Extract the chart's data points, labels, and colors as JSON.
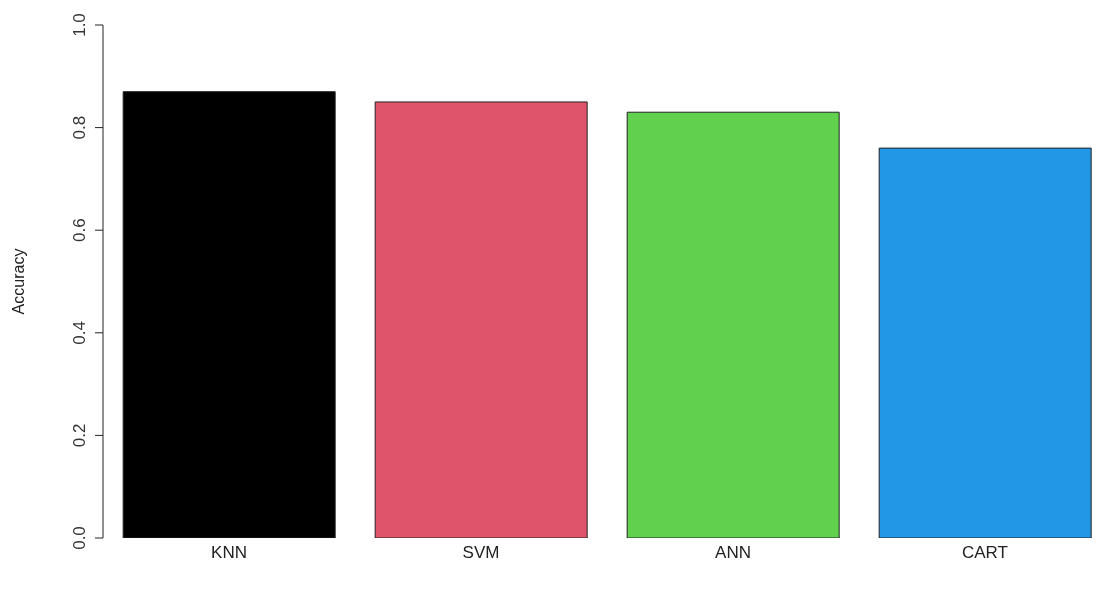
{
  "chart_data": {
    "type": "bar",
    "ylabel": "Accuracy",
    "categories": [
      "KNN",
      "SVM",
      "ANN",
      "CART"
    ],
    "values": [
      0.87,
      0.85,
      0.83,
      0.76
    ],
    "colors": [
      "#000000",
      "#df536b",
      "#61d04f",
      "#2297e6"
    ],
    "ylim": [
      0,
      1
    ],
    "yticks": [
      {
        "value": 0,
        "label": "0.0"
      },
      {
        "value": 0.2,
        "label": "0.2"
      },
      {
        "value": 0.4,
        "label": "0.4"
      },
      {
        "value": 0.6,
        "label": "0.6"
      },
      {
        "value": 0.8,
        "label": "0.8"
      },
      {
        "value": 1,
        "label": "1.0"
      }
    ],
    "grid": false
  }
}
